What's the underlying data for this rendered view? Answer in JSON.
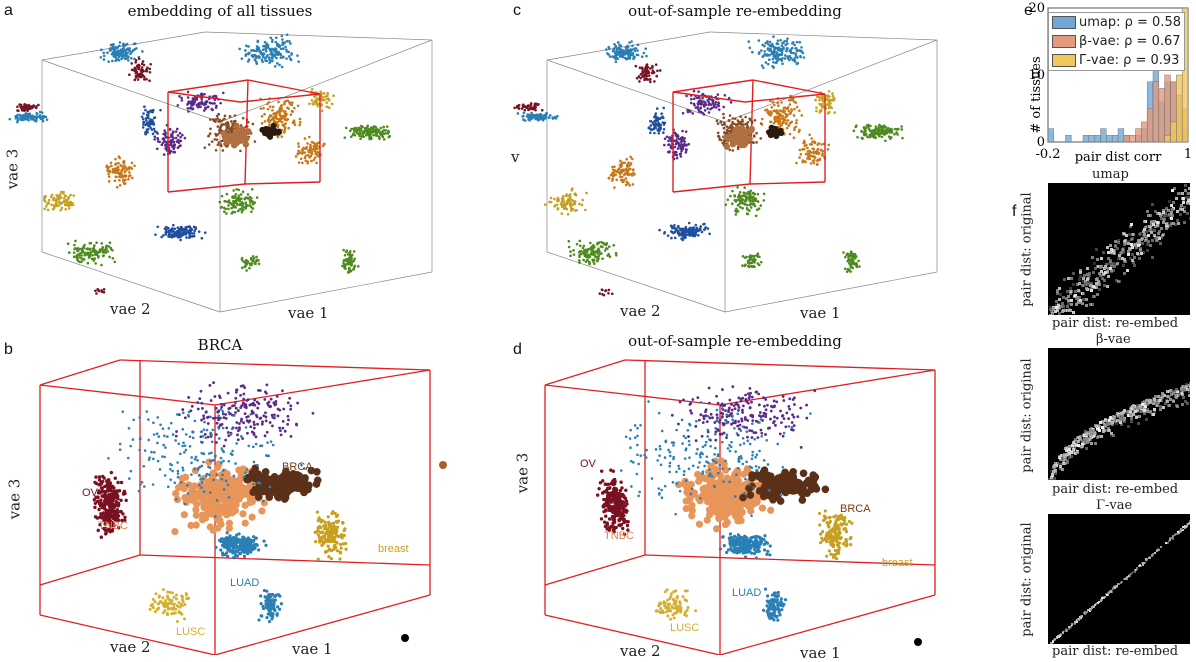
{
  "panels": {
    "a": {
      "letter": "a",
      "title": "embedding of all tissues",
      "x_label": "vae 2",
      "z_label": "vae 1",
      "y_label": "vae 3"
    },
    "b": {
      "letter": "b",
      "title": "BRCA",
      "x_label": "vae 2",
      "z_label": "vae 1",
      "y_label": "vae 3",
      "clusters": [
        "OV",
        "TNBC",
        "BRCA",
        "breast",
        "LUAD",
        "LUSC"
      ]
    },
    "c": {
      "letter": "c",
      "title": "out-of-sample re-embedding",
      "x_label": "vae 2",
      "z_label": "vae 1",
      "y_label": "v"
    },
    "d": {
      "letter": "d",
      "title": "out-of-sample re-embedding",
      "x_label": "vae 2",
      "z_label": "vae 1",
      "y_label": "vae 3",
      "clusters": [
        "OV",
        "TNBC",
        "BRCA",
        "breast",
        "LUAD",
        "LUSC"
      ]
    },
    "e": {
      "letter": "e"
    },
    "f": {
      "letter": "f",
      "subplots": [
        {
          "title": "umap",
          "y_label": "pair dist: original",
          "x_label": "pair dist: re-embed"
        },
        {
          "title": "β-vae",
          "y_label": "pair dist: original",
          "x_label": "pair dist: re-embed"
        },
        {
          "title": "Γ-vae",
          "y_label": "pair dist: original",
          "x_label": "pair dist: re-embed"
        }
      ]
    }
  },
  "colors": {
    "OV": "#7a1020",
    "TNBC": "#e8955a",
    "BRCA": "#8a4a20",
    "breast": "#c8a020",
    "LUAD": "#2a7fb5",
    "LUSC": "#d4b030",
    "green": "#4f8a1f",
    "purple": "#5b2a8a",
    "blue": "#1f4fa0",
    "box": "#e02020"
  },
  "chart_data": {
    "type": "bar",
    "xlabel": "pair dist corr",
    "ylabel": "# of tissues",
    "xlim": [
      -0.2,
      1
    ],
    "ylim": [
      0,
      20
    ],
    "x_ticks": [
      "-0.2",
      "1"
    ],
    "y_ticks": [
      "0",
      "10",
      "20"
    ],
    "legend_position": "top-right",
    "bin_edges": [
      -0.2,
      -0.15,
      -0.1,
      -0.05,
      0.0,
      0.05,
      0.1,
      0.15,
      0.2,
      0.25,
      0.3,
      0.35,
      0.4,
      0.45,
      0.5,
      0.55,
      0.6,
      0.65,
      0.7,
      0.75,
      0.8,
      0.85,
      0.9,
      0.95,
      1.0
    ],
    "series": [
      {
        "name": "umap: ρ = 0.58",
        "color": "#6fa8d6",
        "values": [
          2,
          0,
          0,
          1,
          0,
          0,
          1,
          1,
          1,
          2,
          1,
          1,
          2,
          1,
          0,
          1,
          2,
          9,
          11,
          6,
          9,
          9,
          7,
          2
        ]
      },
      {
        "name": "β-vae: ρ = 0.67",
        "color": "#e39a7a",
        "values": [
          0,
          0,
          0,
          0,
          0,
          0,
          0,
          0,
          0,
          0,
          0,
          0,
          0,
          1,
          1,
          2,
          3,
          5,
          9,
          8,
          10,
          9,
          7,
          5
        ]
      },
      {
        "name": "Γ-vae: ρ = 0.93",
        "color": "#f0c75a",
        "values": [
          0,
          0,
          0,
          0,
          0,
          0,
          0,
          0,
          0,
          0,
          0,
          0,
          0,
          0,
          0,
          0,
          0,
          0,
          0,
          0,
          1,
          3,
          10,
          20
        ]
      }
    ]
  }
}
